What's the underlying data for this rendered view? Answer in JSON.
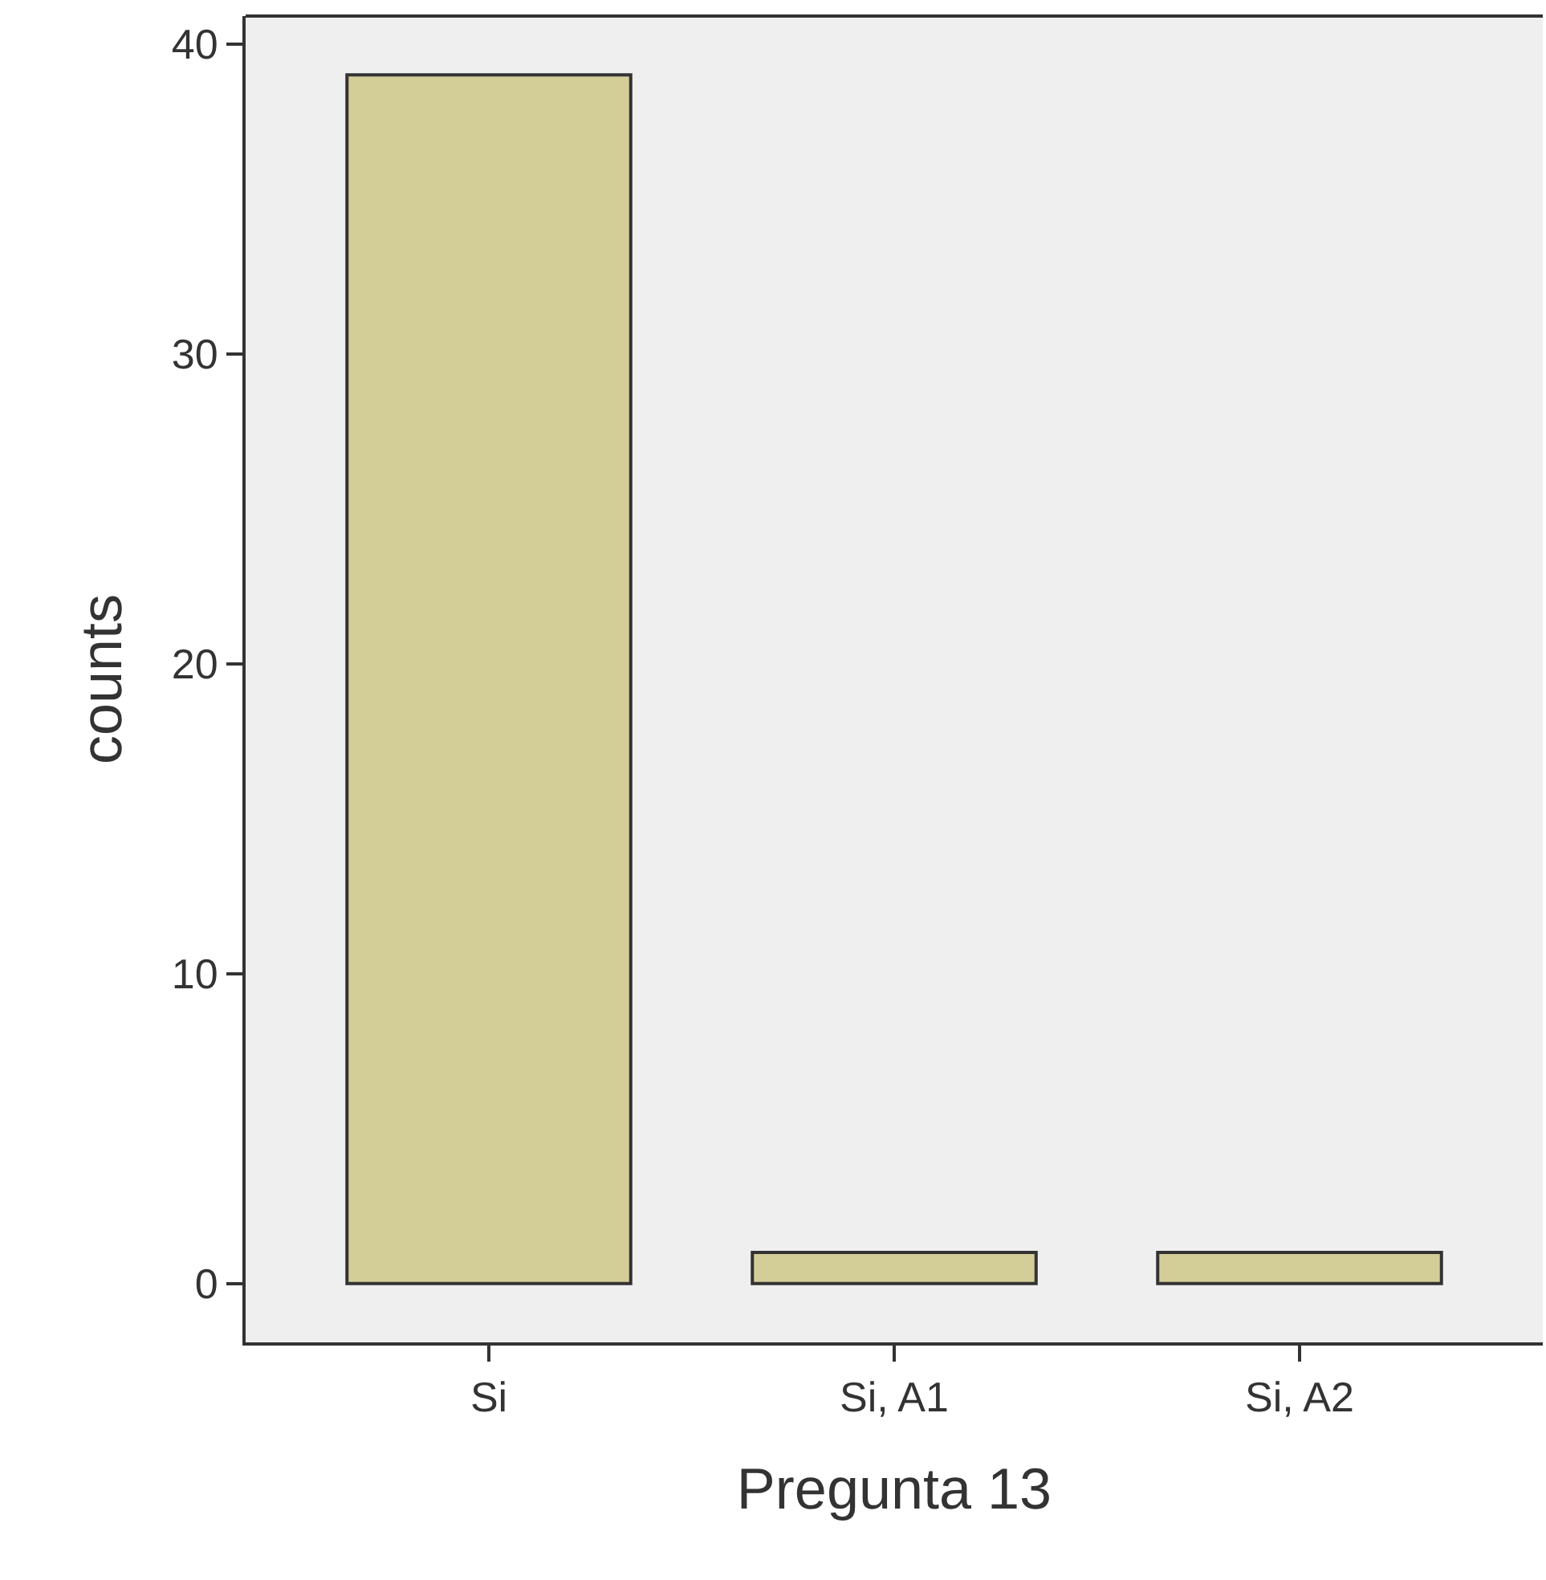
{
  "chart_data": {
    "type": "bar",
    "xlabel": "Pregunta 13",
    "ylabel": "counts",
    "categories": [
      "Si",
      "Si, A1",
      "Si, A2"
    ],
    "values": [
      39,
      1,
      1
    ],
    "color": "#d3cd98",
    "ylim": [
      -1.9,
      40.9
    ],
    "yticks": [
      0,
      10,
      20,
      30,
      40
    ],
    "grid": false,
    "legend": false
  }
}
